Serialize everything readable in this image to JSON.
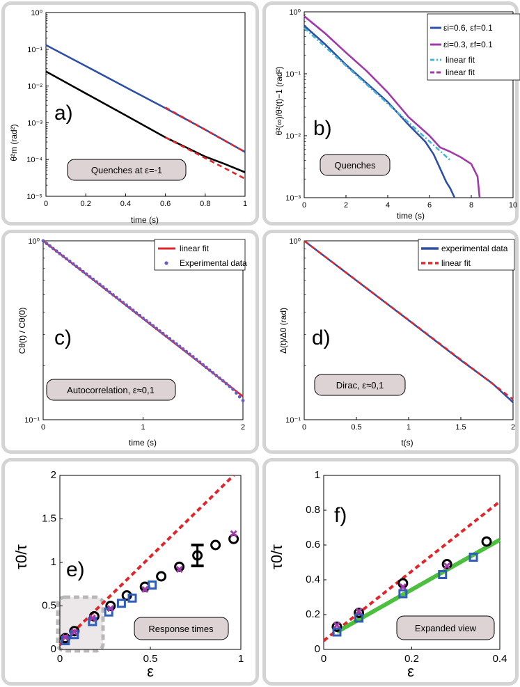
{
  "panels": [
    {
      "id": "a",
      "panel_label": "a)",
      "annotation": "Quenches at ε=-1",
      "chart_data": {
        "type": "line",
        "yscale": "log",
        "xlabel": "time (s)",
        "ylabel": "θ²m (rad²)",
        "xlim": [
          0,
          1
        ],
        "ylim": [
          1e-05,
          1
        ],
        "xticks": [
          "0",
          "0.2",
          "0.4",
          "0.6",
          "0.8",
          "1"
        ],
        "yticks": [
          "10⁻⁵",
          "10⁻⁴",
          "10⁻³",
          "10⁻²",
          "10⁻¹",
          "10⁰"
        ],
        "series": [
          {
            "color": "#2e4fa8",
            "style": "solid",
            "x": [
              0,
              0.2,
              0.4,
              0.6,
              0.8,
              1.0
            ],
            "y": [
              0.13,
              0.035,
              0.0093,
              0.0025,
              0.00065,
              0.00016
            ]
          },
          {
            "color": "#000000",
            "style": "solid",
            "x": [
              0,
              0.2,
              0.4,
              0.6,
              0.7,
              0.8,
              0.9,
              1.0
            ],
            "y": [
              0.025,
              0.0063,
              0.0016,
              0.0004,
              0.00022,
              0.00012,
              7.5e-05,
              4.5e-05
            ]
          },
          {
            "color": "#e0262b",
            "style": "dashed",
            "x": [
              0.6,
              1.0
            ],
            "y": [
              0.0026,
              0.00016
            ]
          },
          {
            "color": "#e0262b",
            "style": "dashed",
            "x": [
              0.6,
              1.0
            ],
            "y": [
              0.0004,
              3e-05
            ]
          }
        ]
      }
    },
    {
      "id": "b",
      "panel_label": "b)",
      "annotation": "Quenches",
      "chart_data": {
        "type": "line",
        "yscale": "log",
        "xlabel": "time (s)",
        "ylabel": "θ²(∞)/θ²(t)−1  (rad²)",
        "xlim": [
          0,
          10
        ],
        "ylim": [
          0.001,
          1
        ],
        "xticks": [
          "0",
          "2",
          "4",
          "6",
          "8",
          "10"
        ],
        "yticks": [
          "10⁻³",
          "10⁻²",
          "10⁻¹",
          "10⁰"
        ],
        "legend": [
          "εi=0.6,  εf=0.1",
          "εi=0.3,  εf=0.1",
          "linear fit",
          "linear fit"
        ],
        "series": [
          {
            "color": "#2e4fa8",
            "style": "solid",
            "x": [
              0,
              1,
              2,
              3,
              4,
              5,
              5.8,
              6.2,
              6.5,
              6.8,
              7.0,
              7.2
            ],
            "y": [
              0.6,
              0.3,
              0.14,
              0.07,
              0.035,
              0.015,
              0.008,
              0.005,
              0.003,
              0.0018,
              0.0014,
              0.001
            ]
          },
          {
            "color": "#a03aa8",
            "style": "solid",
            "x": [
              0,
              1,
              2,
              3,
              4,
              5,
              6,
              6.5,
              7,
              7.5,
              8,
              8.3,
              8.4
            ],
            "y": [
              0.85,
              0.45,
              0.22,
              0.11,
              0.05,
              0.02,
              0.01,
              0.0065,
              0.0055,
              0.0045,
              0.0035,
              0.0022,
              0.001
            ]
          },
          {
            "color": "#45b5d6",
            "style": "dashdot",
            "x": [
              0,
              7
            ],
            "y": [
              0.55,
              0.004
            ]
          },
          {
            "color": "#a03aa8",
            "style": "dashed",
            "x": [
              0,
              1
            ],
            "y": [
              0.85,
              0.45
            ]
          }
        ]
      }
    },
    {
      "id": "c",
      "panel_label": "c)",
      "annotation": "Autocorrelation, ε≈0,1",
      "chart_data": {
        "type": "line",
        "yscale": "log",
        "xlabel": "time (s)",
        "ylabel": "Cθ(t) / Cθ(0)",
        "xlim": [
          0,
          2
        ],
        "ylim": [
          0.1,
          1
        ],
        "xticks": [
          "0",
          "1",
          "2"
        ],
        "yticks": [
          "10⁻¹",
          "10⁰"
        ],
        "legend": [
          "linear fit",
          "Experimental data"
        ],
        "series": [
          {
            "name": "linear fit",
            "color": "#e0262b",
            "style": "solid",
            "x": [
              0,
              2
            ],
            "y": [
              1.0,
              0.135
            ]
          },
          {
            "name": "Experimental data",
            "color": "#6a5bc4",
            "style": "dots",
            "x": [
              0,
              0.5,
              1.0,
              1.5,
              1.8,
              1.9,
              2.0
            ],
            "y": [
              1.0,
              0.61,
              0.37,
              0.225,
              0.165,
              0.148,
              0.128
            ]
          }
        ]
      }
    },
    {
      "id": "d",
      "panel_label": "d)",
      "annotation": "Dirac, ε≈0,1",
      "chart_data": {
        "type": "line",
        "yscale": "log",
        "xlabel": "t(s)",
        "ylabel": "Δ(t)/Δ0 (rad)",
        "xlim": [
          0,
          2
        ],
        "ylim": [
          0.1,
          1
        ],
        "xticks": [
          "0",
          "0.5",
          "1",
          "1.5",
          "2"
        ],
        "yticks": [
          "10⁻¹",
          "10⁰"
        ],
        "legend": [
          "experimental data",
          "linear fit"
        ],
        "series": [
          {
            "name": "experimental data",
            "color": "#2e4fa8",
            "style": "solid",
            "x": [
              0,
              0.5,
              1.0,
              1.5,
              1.8,
              2.0
            ],
            "y": [
              1.0,
              0.6,
              0.36,
              0.215,
              0.16,
              0.125
            ]
          },
          {
            "name": "linear fit",
            "color": "#e0262b",
            "style": "dashed",
            "x": [
              0,
              2
            ],
            "y": [
              1.0,
              0.13
            ]
          }
        ]
      }
    },
    {
      "id": "e",
      "panel_label": "e)",
      "annotation": "Response times",
      "chart_data": {
        "type": "scatter",
        "xlabel": "ε",
        "ylabel": "τ0/τ",
        "xlim": [
          0,
          1
        ],
        "ylim": [
          0,
          2
        ],
        "xticks": [
          "0",
          "0.5",
          "1"
        ],
        "yticks": [
          "0",
          "0.5",
          "1",
          "1.5",
          "2"
        ],
        "series": [
          {
            "marker": "line",
            "color": "#e0262b",
            "style": "dashed",
            "x": [
              0,
              0.96
            ],
            "y": [
              0.05,
              2.0
            ]
          },
          {
            "marker": "circle",
            "color": "#000000",
            "x": [
              0.03,
              0.08,
              0.19,
              0.28,
              0.37,
              0.47,
              0.56,
              0.66,
              0.76,
              0.86,
              0.96
            ],
            "y": [
              0.13,
              0.21,
              0.38,
              0.5,
              0.62,
              0.72,
              0.84,
              0.95,
              1.08,
              1.2,
              1.27
            ]
          },
          {
            "marker": "square",
            "color": "#2f5cb8",
            "x": [
              0.03,
              0.08,
              0.18,
              0.27,
              0.34,
              0.4,
              0.51
            ],
            "y": [
              0.1,
              0.17,
              0.32,
              0.43,
              0.53,
              0.59,
              0.74
            ]
          },
          {
            "marker": "x",
            "color": "#a03aa8",
            "x": [
              0.03,
              0.08,
              0.18,
              0.28,
              0.47,
              0.66,
              0.96
            ],
            "y": [
              0.14,
              0.2,
              0.36,
              0.47,
              0.69,
              0.92,
              1.33
            ]
          },
          {
            "marker": "errorbar",
            "color": "#000000",
            "x": [
              0.76
            ],
            "y": [
              1.08
            ],
            "err": [
              0.12
            ]
          }
        ]
      }
    },
    {
      "id": "f",
      "panel_label": "f)",
      "annotation": "Expanded view",
      "chart_data": {
        "type": "scatter",
        "xlabel": "ε",
        "ylabel": "τ0/τ",
        "xlim": [
          0,
          0.4
        ],
        "ylim": [
          0,
          1
        ],
        "xticks": [
          "0",
          "0.2",
          "0.4"
        ],
        "yticks": [
          "0",
          "0.2",
          "0.4",
          "0.6",
          "0.8",
          "1"
        ],
        "series": [
          {
            "marker": "line",
            "color": "#e0262b",
            "style": "dashed",
            "x": [
              0,
              0.4
            ],
            "y": [
              0.05,
              0.85
            ]
          },
          {
            "marker": "line",
            "color": "#4cbf3e",
            "style": "solid",
            "x": [
              0.03,
              0.4
            ],
            "y": [
              0.1,
              0.63
            ]
          },
          {
            "marker": "circle",
            "color": "#000000",
            "x": [
              0.03,
              0.08,
              0.18,
              0.28,
              0.37
            ],
            "y": [
              0.13,
              0.21,
              0.38,
              0.49,
              0.62
            ]
          },
          {
            "marker": "square",
            "color": "#2f5cb8",
            "x": [
              0.03,
              0.08,
              0.18,
              0.27,
              0.34
            ],
            "y": [
              0.1,
              0.18,
              0.32,
              0.43,
              0.53
            ]
          },
          {
            "marker": "x",
            "color": "#a03aa8",
            "x": [
              0.03,
              0.08,
              0.18,
              0.28
            ],
            "y": [
              0.14,
              0.22,
              0.36,
              0.48
            ]
          }
        ]
      }
    }
  ]
}
